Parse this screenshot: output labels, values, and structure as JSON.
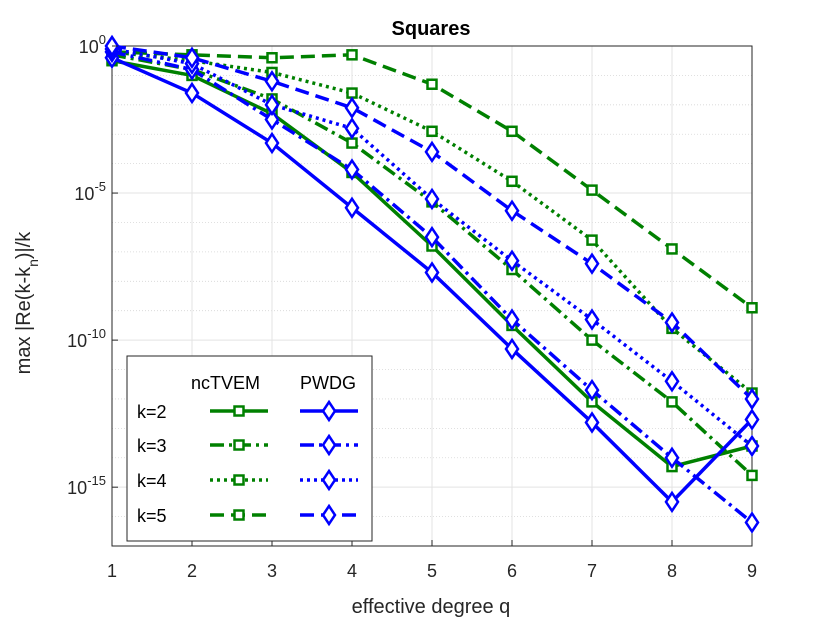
{
  "chart_data": {
    "type": "line",
    "title": "Squares",
    "xlabel": "effective degree q",
    "ylabel_main": "max |Re(k-k",
    "ylabel_sub": "n",
    "ylabel_tail": ")|/k",
    "yscale": "log",
    "xlim": [
      1,
      9
    ],
    "ylim_exp": [
      -17,
      0
    ],
    "x": [
      1,
      2,
      3,
      4,
      5,
      6,
      7,
      8,
      9
    ],
    "xticks": [
      "1",
      "2",
      "3",
      "4",
      "5",
      "6",
      "7",
      "8",
      "9"
    ],
    "yticks": [
      {
        "exp": 0,
        "base": "10",
        "power": "0"
      },
      {
        "exp": -5,
        "base": "10",
        "power": "-5"
      },
      {
        "exp": -10,
        "base": "10",
        "power": "-10"
      },
      {
        "exp": -15,
        "base": "10",
        "power": "-15"
      }
    ],
    "grid": true,
    "legend": {
      "position": "bottom-left",
      "col_headers": [
        "ncTVEM",
        "PWDG"
      ],
      "rows": [
        "k=2",
        "k=3",
        "k=4",
        "k=5"
      ]
    },
    "series": [
      {
        "name": "ncTVEM k=2",
        "method": "ncTVEM",
        "k": 2,
        "color": "#008000",
        "dash": "solid",
        "marker": "square",
        "log10_values": [
          -0.5,
          -1.0,
          -2.3,
          -4.3,
          -6.8,
          -9.5,
          -12.1,
          -14.3,
          -13.6
        ]
      },
      {
        "name": "ncTVEM k=3",
        "method": "ncTVEM",
        "k": 3,
        "color": "#008000",
        "dash": "dashdot",
        "marker": "square",
        "log10_values": [
          -0.3,
          -0.8,
          -1.8,
          -3.3,
          -5.3,
          -7.6,
          -10.0,
          -12.1,
          -14.6
        ]
      },
      {
        "name": "ncTVEM k=4",
        "method": "ncTVEM",
        "k": 4,
        "color": "#008000",
        "dash": "dotted",
        "marker": "square",
        "log10_values": [
          -0.2,
          -0.5,
          -0.9,
          -1.6,
          -2.9,
          -4.6,
          -6.6,
          -9.6,
          -11.8
        ]
      },
      {
        "name": "ncTVEM k=5",
        "method": "ncTVEM",
        "k": 5,
        "color": "#008000",
        "dash": "dashed",
        "marker": "square",
        "log10_values": [
          -0.2,
          -0.3,
          -0.4,
          -0.3,
          -1.3,
          -2.9,
          -4.9,
          -6.9,
          -8.9
        ]
      },
      {
        "name": "PWDG k=2",
        "method": "PWDG",
        "k": 2,
        "color": "#0000ff",
        "dash": "solid",
        "marker": "diamond",
        "log10_values": [
          -0.4,
          -1.6,
          -3.3,
          -5.5,
          -7.7,
          -10.3,
          -12.8,
          -15.5,
          -12.7
        ]
      },
      {
        "name": "PWDG k=3",
        "method": "PWDG",
        "k": 3,
        "color": "#0000ff",
        "dash": "dashdot",
        "marker": "diamond",
        "log10_values": [
          -0.2,
          -0.8,
          -2.5,
          -4.2,
          -6.5,
          -9.3,
          -11.7,
          -14.0,
          -16.2
        ]
      },
      {
        "name": "PWDG k=4",
        "method": "PWDG",
        "k": 4,
        "color": "#0000ff",
        "dash": "dotted",
        "marker": "diamond",
        "log10_values": [
          -0.1,
          -0.6,
          -2.0,
          -2.8,
          -5.2,
          -7.3,
          -9.3,
          -11.4,
          -13.6
        ]
      },
      {
        "name": "PWDG k=5",
        "method": "PWDG",
        "k": 5,
        "color": "#0000ff",
        "dash": "dashed",
        "marker": "diamond",
        "log10_values": [
          0.0,
          -0.4,
          -1.2,
          -2.1,
          -3.6,
          -5.6,
          -7.4,
          -9.4,
          -12.0
        ]
      }
    ]
  }
}
